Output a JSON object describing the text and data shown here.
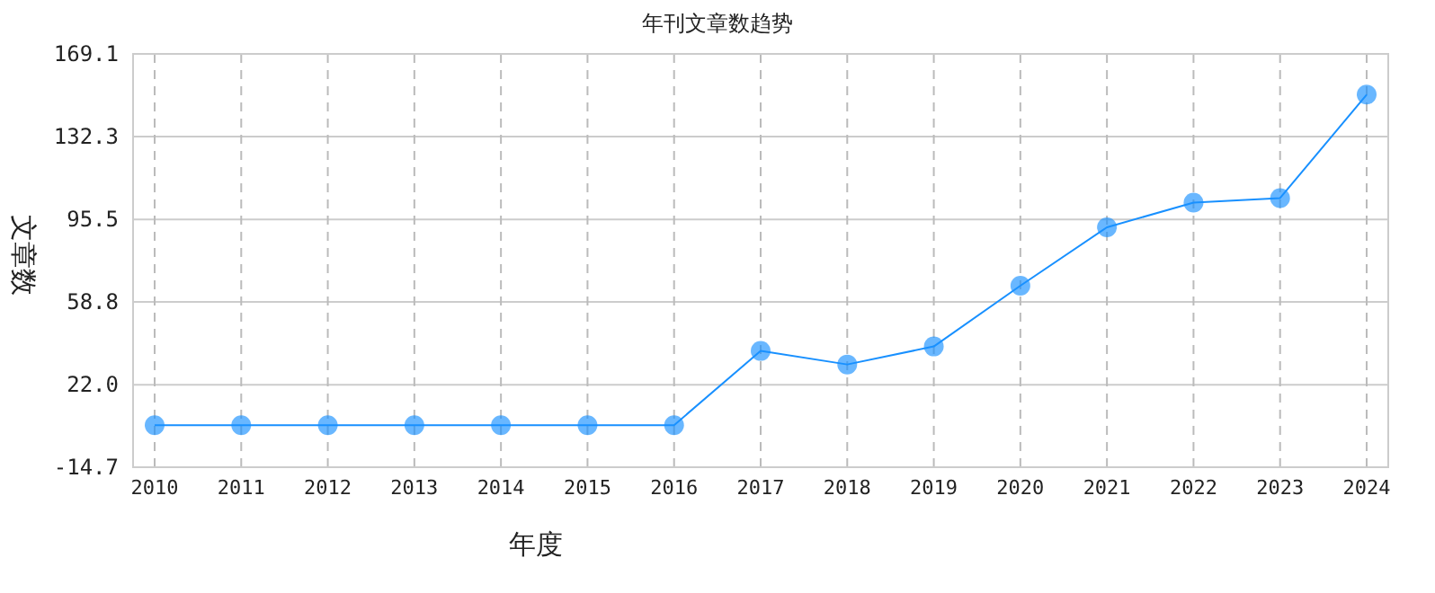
{
  "chart_data": {
    "type": "line",
    "title": "年刊文章数趋势",
    "xlabel": "年度",
    "ylabel": "文章数",
    "categories": [
      "2010",
      "2011",
      "2012",
      "2013",
      "2014",
      "2015",
      "2016",
      "2017",
      "2018",
      "2019",
      "2020",
      "2021",
      "2022",
      "2023",
      "2024"
    ],
    "series": [
      {
        "color": "#1890ff",
        "values": [
          4,
          4,
          4,
          4,
          4,
          4,
          4,
          37,
          31,
          39,
          66,
          92,
          103,
          105,
          151
        ]
      }
    ],
    "ylim": [
      -14.7,
      169.1
    ],
    "yticks": [
      -14.7,
      {
        "value": 22,
        "label": "22.0"
      },
      58.8,
      95.5,
      132.3,
      169.1
    ],
    "grid": true,
    "marker": "circle",
    "line_style": "solid"
  }
}
